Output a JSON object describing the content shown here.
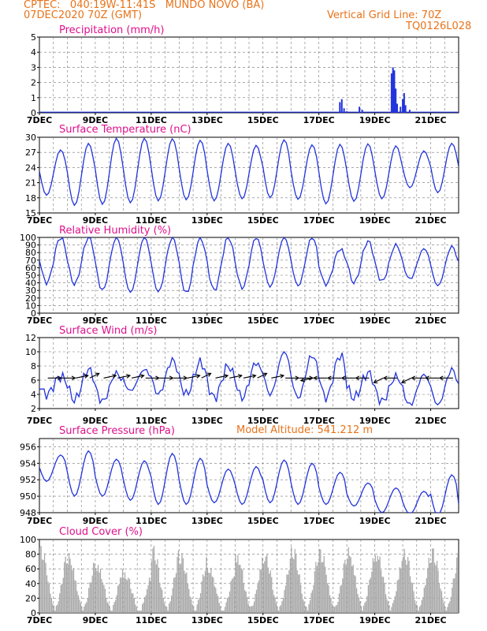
{
  "header": {
    "line1": "CPTEC:   040:19W-11:41S   MUNDO NOVO (BA)",
    "line2": "07DEC2020 70Z (GMT)",
    "grid_line": "Vertical Grid Line: 70Z",
    "code": "TQ0126L028",
    "model_altitude": "Model Altitude: 541.212 m"
  },
  "colors": {
    "header": "#e8731a",
    "title": "#e0108c",
    "line": "#2233dd",
    "bar": "#2233dd",
    "cloud": "#aaaaaa",
    "arrow": "#000000",
    "grid": "#777777"
  },
  "chart_data": [
    {
      "type": "bar",
      "title": "Precipitation (mm/h)",
      "x_range": [
        "07DEC",
        "22DEC"
      ],
      "x_ticks": [
        "7DEC",
        "9DEC",
        "11DEC",
        "13DEC",
        "15DEC",
        "17DEC",
        "19DEC",
        "21DEC"
      ],
      "ylim": [
        0,
        5
      ],
      "y_ticks": [
        "0",
        "1",
        "2",
        "3",
        "4",
        "5"
      ],
      "grid": "dashed",
      "events": [
        {
          "day": 17.75,
          "value": 0.7
        },
        {
          "day": 17.82,
          "value": 0.9
        },
        {
          "day": 17.9,
          "value": 0.3
        },
        {
          "day": 18.0,
          "value": 0.1
        },
        {
          "day": 18.45,
          "value": 0.4
        },
        {
          "day": 18.55,
          "value": 0.2
        },
        {
          "day": 19.6,
          "value": 2.6
        },
        {
          "day": 19.65,
          "value": 3.0
        },
        {
          "day": 19.7,
          "value": 2.8
        },
        {
          "day": 19.75,
          "value": 1.6
        },
        {
          "day": 19.8,
          "value": 0.6
        },
        {
          "day": 19.92,
          "value": 0.4
        },
        {
          "day": 20.0,
          "value": 0.9
        },
        {
          "day": 20.05,
          "value": 1.3
        },
        {
          "day": 20.1,
          "value": 0.5
        },
        {
          "day": 20.25,
          "value": 0.2
        }
      ]
    },
    {
      "type": "line",
      "title": "Surface Temperature (nC)",
      "x_ticks": [
        "7DEC",
        "9DEC",
        "11DEC",
        "13DEC",
        "15DEC",
        "17DEC",
        "19DEC",
        "21DEC"
      ],
      "ylim": [
        15,
        30
      ],
      "y_ticks": [
        "15",
        "18",
        "21",
        "24",
        "27",
        "30"
      ],
      "grid": "dashed",
      "daily": [
        {
          "day": 7,
          "min": 18.5,
          "max": 27.5
        },
        {
          "day": 8,
          "min": 16.5,
          "max": 28.8
        },
        {
          "day": 9,
          "min": 16.7,
          "max": 29.8
        },
        {
          "day": 10,
          "min": 17.0,
          "max": 29.8
        },
        {
          "day": 11,
          "min": 17.4,
          "max": 29.7
        },
        {
          "day": 12,
          "min": 17.6,
          "max": 29.4
        },
        {
          "day": 13,
          "min": 17.4,
          "max": 28.8
        },
        {
          "day": 14,
          "min": 17.8,
          "max": 28.4
        },
        {
          "day": 15,
          "min": 18.0,
          "max": 29.5
        },
        {
          "day": 16,
          "min": 17.7,
          "max": 28.5
        },
        {
          "day": 17,
          "min": 16.8,
          "max": 28.6
        },
        {
          "day": 18,
          "min": 17.3,
          "max": 28.7
        },
        {
          "day": 19,
          "min": 17.8,
          "max": 28.3
        },
        {
          "day": 20,
          "min": 20.0,
          "max": 27.3
        },
        {
          "day": 21,
          "min": 19.0,
          "max": 28.8
        },
        {
          "day": 22,
          "min": 18.8,
          "max": 29.0
        }
      ]
    },
    {
      "type": "line",
      "title": "Relative Humidity (%)",
      "x_ticks": [
        "7DEC",
        "9DEC",
        "11DEC",
        "13DEC",
        "15DEC",
        "17DEC",
        "19DEC",
        "21DEC"
      ],
      "ylim": [
        0,
        100
      ],
      "y_ticks": [
        "0",
        "10",
        "20",
        "30",
        "40",
        "50",
        "60",
        "70",
        "80",
        "90",
        "100"
      ],
      "grid": "dashed",
      "daily": [
        {
          "day": 7,
          "min": 40,
          "max": 100
        },
        {
          "day": 8,
          "min": 38,
          "max": 100
        },
        {
          "day": 9,
          "min": 30,
          "max": 100
        },
        {
          "day": 10,
          "min": 27,
          "max": 100
        },
        {
          "day": 11,
          "min": 28,
          "max": 100
        },
        {
          "day": 12,
          "min": 26,
          "max": 100
        },
        {
          "day": 13,
          "min": 30,
          "max": 100
        },
        {
          "day": 14,
          "min": 33,
          "max": 100
        },
        {
          "day": 15,
          "min": 35,
          "max": 100
        },
        {
          "day": 16,
          "min": 36,
          "max": 100
        },
        {
          "day": 17,
          "min": 38,
          "max": 85
        },
        {
          "day": 18,
          "min": 40,
          "max": 95
        },
        {
          "day": 19,
          "min": 42,
          "max": 90
        },
        {
          "day": 20,
          "min": 45,
          "max": 85
        },
        {
          "day": 21,
          "min": 36,
          "max": 88
        },
        {
          "day": 22,
          "min": 40,
          "max": 90
        }
      ]
    },
    {
      "type": "line",
      "title": "Surface Wind (m/s)",
      "x_ticks": [
        "7DEC",
        "9DEC",
        "11DEC",
        "13DEC",
        "15DEC",
        "17DEC",
        "19DEC",
        "21DEC"
      ],
      "ylim": [
        2,
        12
      ],
      "y_ticks": [
        "2",
        "4",
        "6",
        "8",
        "10",
        "12"
      ],
      "grid": "dashed",
      "daily": [
        {
          "day": 7,
          "min": 4.0,
          "max": 6.5
        },
        {
          "day": 8,
          "min": 3.2,
          "max": 7.5
        },
        {
          "day": 9,
          "min": 3.0,
          "max": 7.0
        },
        {
          "day": 10,
          "min": 4.5,
          "max": 7.5
        },
        {
          "day": 11,
          "min": 4.0,
          "max": 8.8
        },
        {
          "day": 12,
          "min": 4.0,
          "max": 8.5
        },
        {
          "day": 13,
          "min": 3.5,
          "max": 8.0
        },
        {
          "day": 14,
          "min": 3.5,
          "max": 8.5
        },
        {
          "day": 15,
          "min": 4.0,
          "max": 10.0
        },
        {
          "day": 16,
          "min": 3.5,
          "max": 9.5
        },
        {
          "day": 17,
          "min": 3.5,
          "max": 9.5
        },
        {
          "day": 18,
          "min": 3.5,
          "max": 7.0
        },
        {
          "day": 19,
          "min": 3.0,
          "max": 6.5
        },
        {
          "day": 20,
          "min": 2.5,
          "max": 6.8
        },
        {
          "day": 21,
          "min": 2.5,
          "max": 7.5
        },
        {
          "day": 22,
          "min": 4.0,
          "max": 6.0
        }
      ],
      "vectors": [
        {
          "day": 7.3,
          "dir": "E"
        },
        {
          "day": 7.8,
          "dir": "E"
        },
        {
          "day": 8.3,
          "dir": "ENE"
        },
        {
          "day": 8.8,
          "dir": "NE"
        },
        {
          "day": 9.3,
          "dir": "ENE"
        },
        {
          "day": 9.8,
          "dir": "ENE"
        },
        {
          "day": 10.3,
          "dir": "ENE"
        },
        {
          "day": 10.8,
          "dir": "E"
        },
        {
          "day": 11.3,
          "dir": "E"
        },
        {
          "day": 11.8,
          "dir": "E"
        },
        {
          "day": 12.3,
          "dir": "ENE"
        },
        {
          "day": 12.8,
          "dir": "NE"
        },
        {
          "day": 13.3,
          "dir": "ENE"
        },
        {
          "day": 13.8,
          "dir": "ENE"
        },
        {
          "day": 14.3,
          "dir": "ENE"
        },
        {
          "day": 14.8,
          "dir": "NE"
        },
        {
          "day": 15.3,
          "dir": "ENE"
        },
        {
          "day": 15.8,
          "dir": "E"
        },
        {
          "day": 16.3,
          "dir": "E"
        },
        {
          "day": 16.8,
          "dir": "WSW"
        },
        {
          "day": 17.3,
          "dir": "W"
        },
        {
          "day": 17.8,
          "dir": "W"
        },
        {
          "day": 18.3,
          "dir": "W"
        },
        {
          "day": 18.8,
          "dir": "W"
        },
        {
          "day": 19.3,
          "dir": "SW"
        },
        {
          "day": 19.8,
          "dir": "W"
        },
        {
          "day": 20.3,
          "dir": "SW"
        },
        {
          "day": 20.8,
          "dir": "W"
        },
        {
          "day": 21.3,
          "dir": "W"
        },
        {
          "day": 21.8,
          "dir": "W"
        }
      ]
    },
    {
      "type": "line",
      "title": "Surface Pressure (hPa)",
      "x_ticks": [
        "7DEC",
        "9DEC",
        "11DEC",
        "13DEC",
        "15DEC",
        "17DEC",
        "19DEC",
        "21DEC"
      ],
      "ylim": [
        948,
        957
      ],
      "y_ticks": [
        "948",
        "950",
        "952",
        "954",
        "956"
      ],
      "grid": "dashed",
      "daily": [
        {
          "day": 7,
          "min": 951.8,
          "max": 955.0
        },
        {
          "day": 8,
          "min": 950.0,
          "max": 955.5
        },
        {
          "day": 9,
          "min": 950.0,
          "max": 954.5
        },
        {
          "day": 10,
          "min": 949.5,
          "max": 954.3
        },
        {
          "day": 11,
          "min": 949.0,
          "max": 955.2
        },
        {
          "day": 12,
          "min": 949.0,
          "max": 954.6
        },
        {
          "day": 13,
          "min": 949.2,
          "max": 953.3
        },
        {
          "day": 14,
          "min": 949.0,
          "max": 953.6
        },
        {
          "day": 15,
          "min": 949.2,
          "max": 954.4
        },
        {
          "day": 16,
          "min": 949.0,
          "max": 954.0
        },
        {
          "day": 17,
          "min": 949.0,
          "max": 952.9
        },
        {
          "day": 18,
          "min": 948.8,
          "max": 951.6
        },
        {
          "day": 19,
          "min": 948.0,
          "max": 951.0
        },
        {
          "day": 20,
          "min": 947.8,
          "max": 950.6
        },
        {
          "day": 21,
          "min": 947.6,
          "max": 952.6
        },
        {
          "day": 22,
          "min": 948.0,
          "max": 950.0
        }
      ]
    },
    {
      "type": "bar",
      "title": "Cloud Cover (%)",
      "x_ticks": [
        "7DEC",
        "9DEC",
        "11DEC",
        "13DEC",
        "15DEC",
        "17DEC",
        "19DEC",
        "21DEC"
      ],
      "ylim": [
        0,
        100
      ],
      "y_ticks": [
        "0",
        "20",
        "40",
        "60",
        "80",
        "100"
      ],
      "grid": "dashed",
      "daily_peak": [
        95,
        85,
        75,
        60,
        95,
        85,
        70,
        90,
        88,
        95,
        92,
        95,
        93,
        92,
        92,
        88
      ]
    }
  ]
}
